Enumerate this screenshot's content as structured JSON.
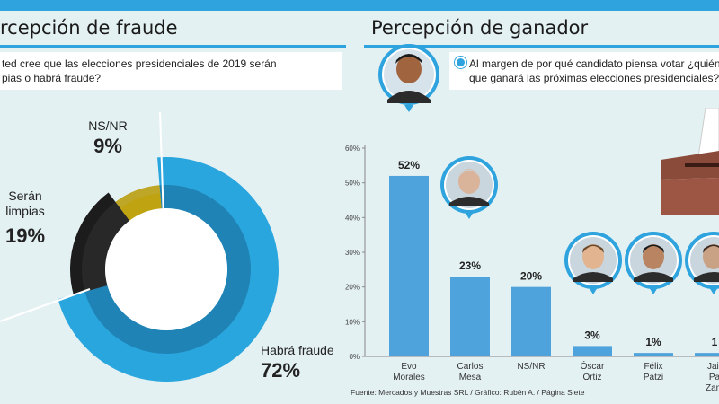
{
  "left_panel": {
    "title": "rcepción de fraude",
    "question_line1": "ted cree que las elecciones presidenciales de 2019 serán",
    "question_line2": "pias o habrá fraude?"
  },
  "right_panel": {
    "title": "Percepción de ganador",
    "question_line1": "Al margen de por qué candidato piensa votar ¿quién",
    "question_line2": "que ganará las próximas elecciones presidenciales?"
  },
  "source": "Fuente: Mercados y Muestras SRL / Gráfico: Rubén A. / Página Siete",
  "colors": {
    "accent": "#2ea3dd",
    "bar": "#4fa3dc",
    "donut_fraud": "#29a6de",
    "donut_clean": "#1c1c1c",
    "donut_nsnr": "#f3d21a",
    "background": "#e4f1f3"
  },
  "chart_data": [
    {
      "type": "pie",
      "style": "donut",
      "slices": [
        {
          "label": "Habrá fraude",
          "value_label": "72%",
          "value": 72
        },
        {
          "label": "Serán limpias",
          "value_label": "19%",
          "value": 19
        },
        {
          "label": "NS/NR",
          "value_label": "9%",
          "value": 9
        }
      ]
    },
    {
      "type": "bar",
      "categories": [
        [
          "Evo",
          "Morales"
        ],
        [
          "Carlos",
          "Mesa"
        ],
        [
          "NS/NR"
        ],
        [
          "Óscar",
          "Ortiz"
        ],
        [
          "Félix",
          "Patzi"
        ],
        [
          "Jair",
          "Pa",
          "Zam"
        ]
      ],
      "values": [
        52,
        23,
        20,
        3,
        1,
        1
      ],
      "value_labels": [
        "52%",
        "23%",
        "20%",
        "3%",
        "1%",
        "1"
      ],
      "ylim": [
        0,
        60
      ],
      "yticks": [
        "0%",
        "10%",
        "20%",
        "30%",
        "40%",
        "50%",
        "60%"
      ],
      "grid": false,
      "xlabel": "",
      "ylabel": ""
    }
  ]
}
